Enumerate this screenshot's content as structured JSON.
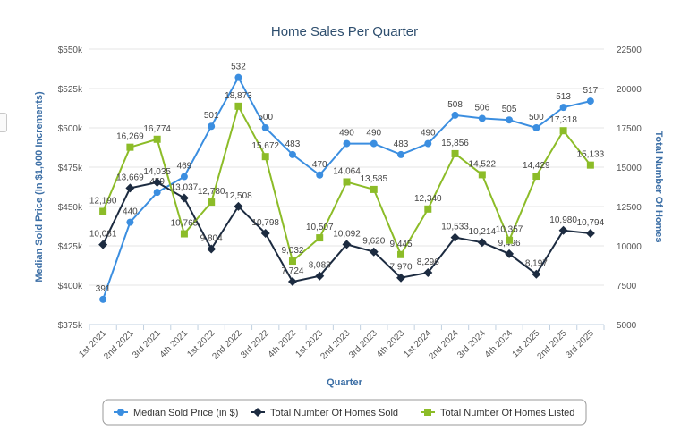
{
  "chart_data": {
    "type": "line",
    "title": "Home Sales Per Quarter",
    "xlabel": "Quarter",
    "ylabel_left": "Median Sold Price (In $1,000 Increments)",
    "ylabel_right": "Total Number Of Homes",
    "left_ylim": [
      375,
      550
    ],
    "left_ticks": [
      375,
      400,
      425,
      450,
      475,
      500,
      525,
      550
    ],
    "left_tick_labels": [
      "$375k",
      "$400k",
      "$425k",
      "$450k",
      "$475k",
      "$500k",
      "$525k",
      "$550k"
    ],
    "right_ylim": [
      5000,
      22500
    ],
    "right_ticks": [
      5000,
      7500,
      10000,
      12500,
      15000,
      17500,
      20000,
      22500
    ],
    "right_tick_labels": [
      "5000",
      "7500",
      "10000",
      "12500",
      "15000",
      "17500",
      "20000",
      "22500"
    ],
    "categories": [
      "1st 2021",
      "2nd 2021",
      "3rd 2021",
      "4th 2021",
      "1st 2022",
      "2nd 2022",
      "3rd 2022",
      "4th 2022",
      "1st 2023",
      "2nd 2023",
      "3rd 2023",
      "4th 2023",
      "1st 2024",
      "2nd 2024",
      "3rd 2024",
      "4th 2024",
      "1st 2025",
      "2nd 2025",
      "3rd 2025"
    ],
    "series": [
      {
        "name": "Median Sold Price (in $)",
        "axis": "left",
        "color": "#3b8ee0",
        "marker": "circle",
        "values": [
          391,
          440,
          459,
          469,
          501,
          532,
          500,
          483,
          470,
          490,
          490,
          483,
          490,
          508,
          506,
          505,
          500,
          513,
          517
        ],
        "labels": [
          "391",
          "440",
          "459",
          "469",
          "501",
          "532",
          "500",
          "483",
          "470",
          "490",
          "490",
          "483",
          "490",
          "508",
          "506",
          "505",
          "500",
          "513",
          "517"
        ]
      },
      {
        "name": "Total Number Of Homes Sold",
        "axis": "right",
        "color": "#1c2b40",
        "marker": "diamond",
        "values": [
          10081,
          13669,
          14035,
          13037,
          9804,
          12508,
          10798,
          7724,
          8083,
          10092,
          9620,
          7970,
          8296,
          10533,
          10214,
          9496,
          8197,
          10980,
          10794
        ],
        "labels": [
          "10,081",
          "13,669",
          "14,035",
          "13,037",
          "9,804",
          "12,508",
          "10,798",
          "7,724",
          "8,083",
          "10,092",
          "9,620",
          "7,970",
          "8,296",
          "10,533",
          "10,214",
          "9,496",
          "8,197",
          "10,980",
          "10,794"
        ]
      },
      {
        "name": "Total Number Of Homes Listed",
        "axis": "right",
        "color": "#8cbc28",
        "marker": "square",
        "values": [
          12190,
          16269,
          16774,
          10765,
          12780,
          18873,
          15672,
          9032,
          10507,
          14064,
          13585,
          9445,
          12340,
          15856,
          14522,
          10357,
          14429,
          17318,
          15133
        ],
        "labels": [
          "12,190",
          "16,269",
          "16,774",
          "10,765",
          "12,780",
          "18,873",
          "15,672",
          "9,032",
          "10,507",
          "14,064",
          "13,585",
          "9,445",
          "12,340",
          "15,856",
          "14,522",
          "10,357",
          "14,429",
          "17,318",
          "15,133"
        ]
      }
    ],
    "legend_position": "bottom-center",
    "grid": true
  }
}
